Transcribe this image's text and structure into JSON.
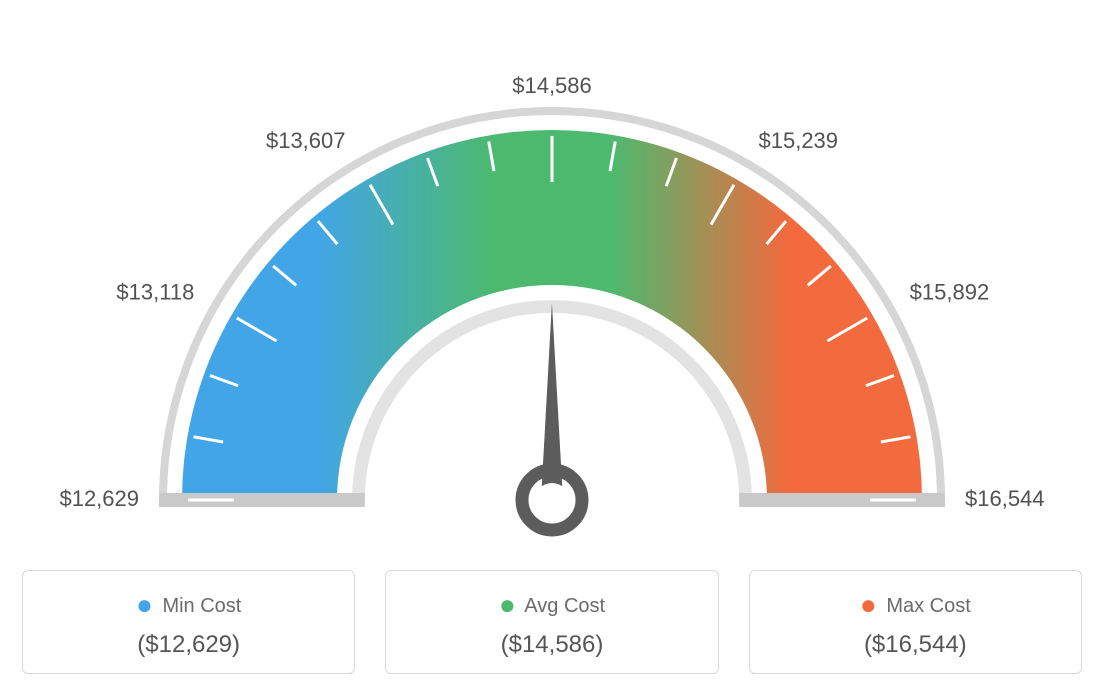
{
  "gauge": {
    "type": "gauge",
    "min_value": 12629,
    "max_value": 16544,
    "needle_value": 14586,
    "ticks": [
      {
        "label": "$12,629",
        "text_anchor": "end"
      },
      {
        "label": "$13,118",
        "text_anchor": "end"
      },
      {
        "label": "$13,607",
        "text_anchor": "end"
      },
      {
        "label": "$14,586",
        "text_anchor": "middle"
      },
      {
        "label": "$15,239",
        "text_anchor": "start"
      },
      {
        "label": "$15,892",
        "text_anchor": "start"
      },
      {
        "label": "$16,544",
        "text_anchor": "start"
      }
    ],
    "tick_label_fontsize": 22,
    "tick_label_color": "#525252",
    "minor_tick_count_between": 2,
    "colors": {
      "min": "#42a5e8",
      "avg": "#4cb96f",
      "max": "#f26a3e",
      "outer_ring": "#d6d6d6",
      "inner_ring": "#e3e3e3",
      "end_caps": "#c9c9c9",
      "tick_line": "#ffffff",
      "needle": "#5c5c5c",
      "background": "#ffffff"
    },
    "outer_radius": 370,
    "inner_radius": 215,
    "thin_ring_width": 8,
    "thin_ring_gap": 15,
    "tick_line_width": 3
  },
  "legend": {
    "items": [
      {
        "label": "Min Cost",
        "value": "($12,629)",
        "color": "#42a5e8"
      },
      {
        "label": "Avg Cost",
        "value": "($14,586)",
        "color": "#4cb96f"
      },
      {
        "label": "Max Cost",
        "value": "($16,544)",
        "color": "#f26a3e"
      }
    ],
    "label_fontsize": 20,
    "value_fontsize": 24,
    "label_color": "#6b6b6b",
    "value_color": "#555555",
    "border_color": "#d9d9d9",
    "border_radius": 6
  }
}
